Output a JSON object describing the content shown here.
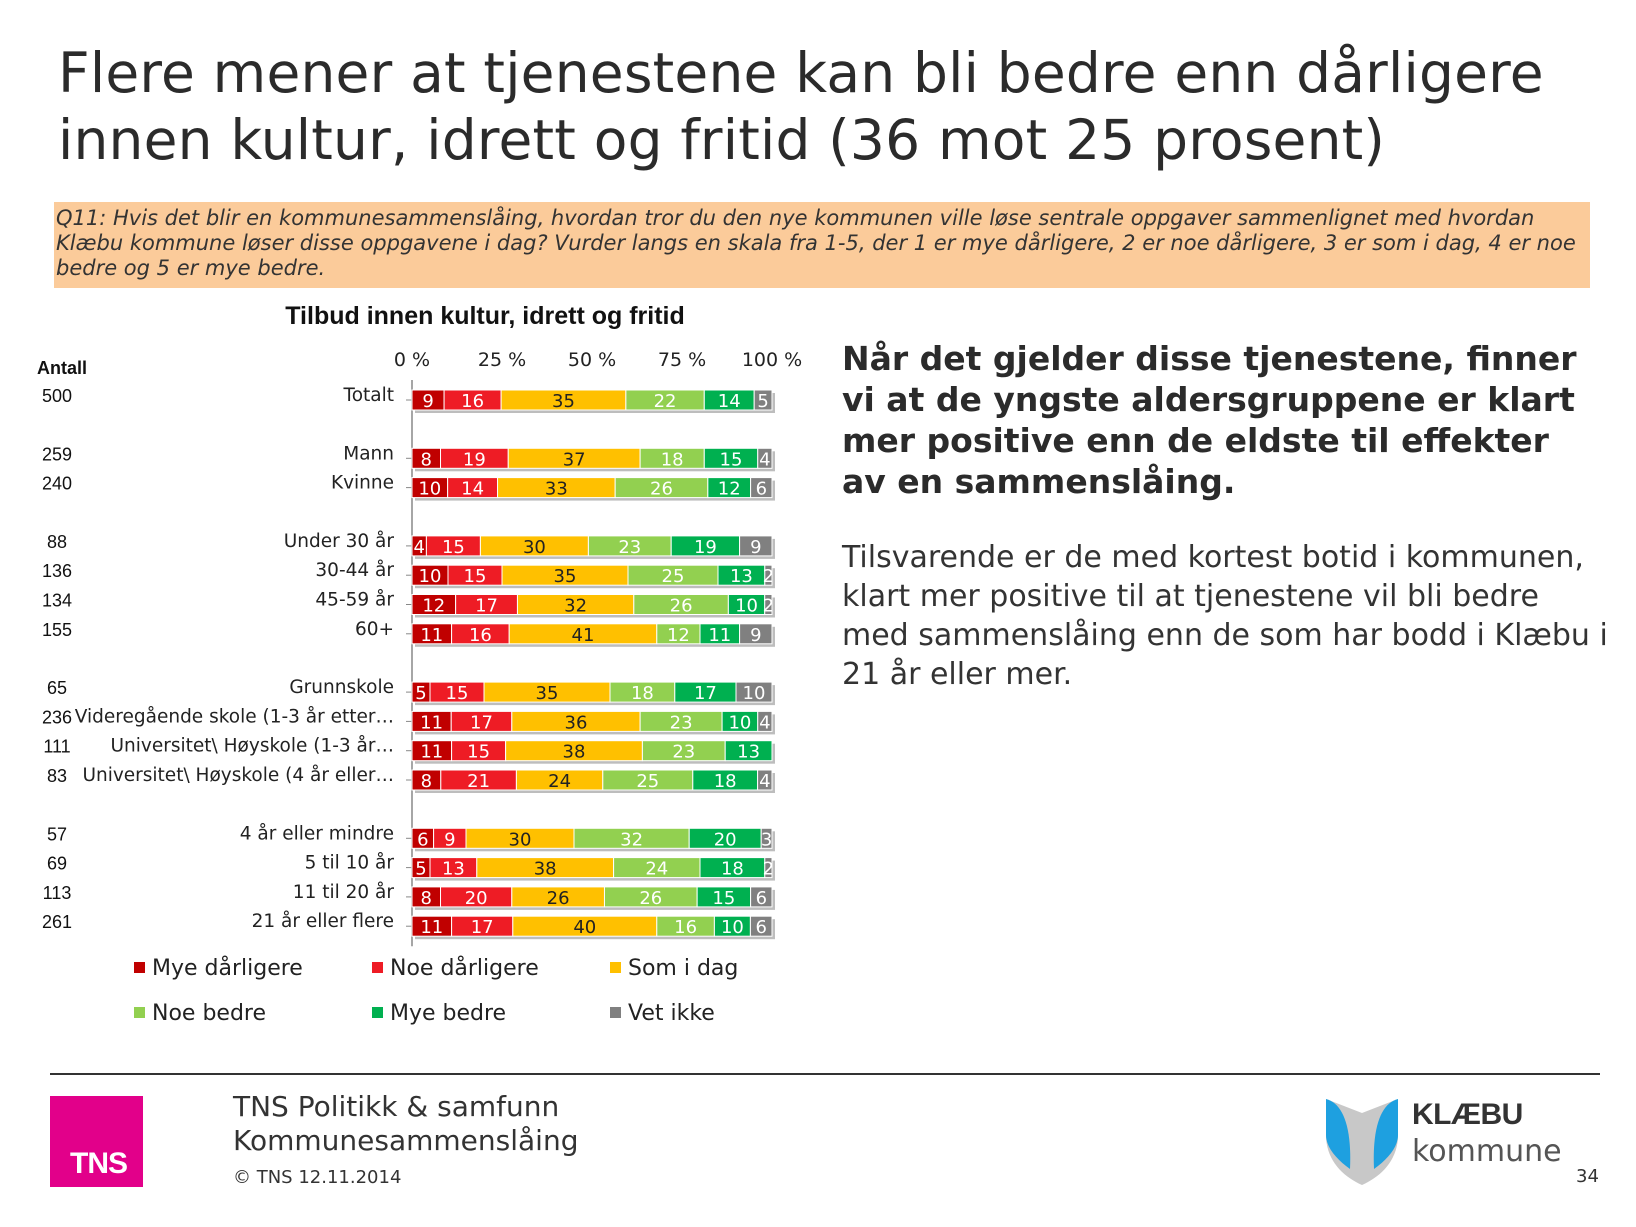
{
  "slide": {
    "title": "Flere mener at tjenestene kan bli bedre enn dårligere innen kultur, idrett og fritid (36 mot 25 prosent)",
    "question": "Q11: Hvis det blir en kommunesammenslåing, hvordan tror du den nye kommunen ville løse sentrale oppgaver sammenlignet med hvordan Klæbu kommune løser disse oppgavene i dag? Vurder langs en skala fra 1-5, der 1 er mye dårligere, 2 er noe dårligere, 3 er som i dag, 4 er noe bedre og 5 er mye bedre.",
    "summary_bold": "Når det gjelder disse tjenestene, finner vi at de yngste aldersgruppene er klart mer positive enn de eldste til effekter av en sammenslåing.",
    "summary_text": "Tilsvarende er de med kortest botid i kommunen, klart mer positive til at tjenestene vil bli bedre med sammenslåing enn de som har bodd i Klæbu i 21 år eller mer."
  },
  "footer": {
    "org_line1": "TNS Politikk & samfunn",
    "org_line2": "Kommunesammenslåing",
    "copyright": "© TNS 12.11.2014",
    "tns_logo_text": "TNS",
    "klabu_name": "KLÆBU",
    "klabu_sub": "kommune",
    "page_number": "34"
  },
  "chart_data": {
    "type": "bar",
    "orientation": "horizontal-stacked-100",
    "title": "Tilbud innen kultur, idrett og fritid",
    "count_header": "Antall",
    "x_ticks": [
      "0 %",
      "25 %",
      "50 %",
      "75 %",
      "100 %"
    ],
    "xlim": [
      0,
      100
    ],
    "legend_position": "bottom",
    "series": [
      {
        "name": "Mye dårligere",
        "color": "#c00000"
      },
      {
        "name": "Noe dårligere",
        "color": "#ee1c25"
      },
      {
        "name": "Som i dag",
        "color": "#ffc000"
      },
      {
        "name": "Noe bedre",
        "color": "#92d050"
      },
      {
        "name": "Mye bedre",
        "color": "#00b050"
      },
      {
        "name": "Vet ikke",
        "color": "#808080"
      }
    ],
    "rows": [
      {
        "label": "Totalt",
        "n": "500",
        "values": [
          9,
          16,
          35,
          22,
          14,
          5
        ],
        "group": 0
      },
      {
        "label": "Mann",
        "n": "259",
        "values": [
          8,
          19,
          37,
          18,
          15,
          4
        ],
        "group": 1
      },
      {
        "label": "Kvinne",
        "n": "240",
        "values": [
          10,
          14,
          33,
          26,
          12,
          6
        ],
        "group": 1
      },
      {
        "label": "Under 30 år",
        "n": "88",
        "values": [
          4,
          15,
          30,
          23,
          19,
          9
        ],
        "group": 2
      },
      {
        "label": "30-44 år",
        "n": "136",
        "values": [
          10,
          15,
          35,
          25,
          13,
          2
        ],
        "group": 2
      },
      {
        "label": "45-59 år",
        "n": "134",
        "values": [
          12,
          17,
          32,
          26,
          10,
          2
        ],
        "group": 2
      },
      {
        "label": "60+",
        "n": "155",
        "values": [
          11,
          16,
          41,
          12,
          11,
          9
        ],
        "group": 2
      },
      {
        "label": "Grunnskole",
        "n": "65",
        "values": [
          5,
          15,
          35,
          18,
          17,
          10
        ],
        "group": 3
      },
      {
        "label": "Videregående skole (1-3 år etter…",
        "n": "236",
        "values": [
          11,
          17,
          36,
          23,
          10,
          4
        ],
        "group": 3
      },
      {
        "label": "Universitet\\ Høyskole (1-3 år…",
        "n": "111",
        "values": [
          11,
          15,
          38,
          23,
          13,
          0
        ],
        "group": 3
      },
      {
        "label": "Universitet\\ Høyskole (4 år eller…",
        "n": "83",
        "values": [
          8,
          21,
          24,
          25,
          18,
          4
        ],
        "group": 3
      },
      {
        "label": "4 år eller mindre",
        "n": "57",
        "values": [
          6,
          9,
          30,
          32,
          20,
          3
        ],
        "group": 4
      },
      {
        "label": "5 til 10 år",
        "n": "69",
        "values": [
          5,
          13,
          38,
          24,
          18,
          2
        ],
        "group": 4
      },
      {
        "label": "11 til 20 år",
        "n": "113",
        "values": [
          8,
          20,
          26,
          26,
          15,
          6
        ],
        "group": 4
      },
      {
        "label": "21 år eller flere",
        "n": "261",
        "values": [
          11,
          17,
          40,
          16,
          10,
          6
        ],
        "group": 4
      }
    ]
  }
}
